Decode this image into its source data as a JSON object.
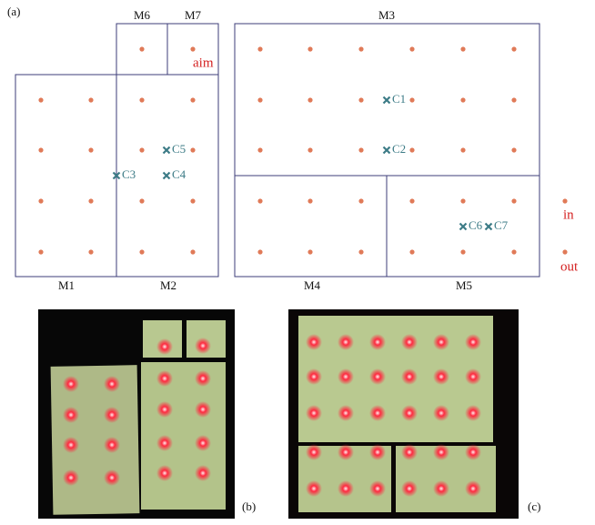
{
  "panel_a": "(a)",
  "modules": [
    "M1",
    "M2",
    "M3",
    "M4",
    "M5",
    "M6",
    "M7"
  ],
  "aim": "aim",
  "markers": [
    "C1",
    "C2",
    "C3",
    "C4",
    "C5",
    "C6",
    "C7"
  ],
  "inlet": "in",
  "outlet": "out",
  "panel_b": "(b)",
  "panel_c": "(c)"
}
